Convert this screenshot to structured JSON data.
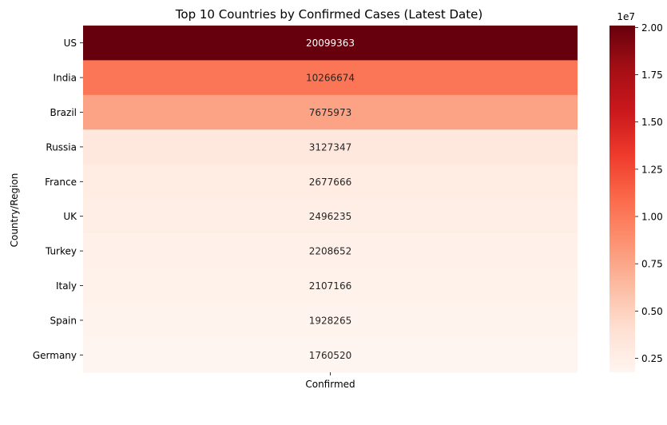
{
  "chart_data": {
    "type": "heatmap",
    "title": "Top 10 Countries by Confirmed Cases (Latest Date)",
    "xlabel": "",
    "ylabel": "Country/Region",
    "x_categories": [
      "Confirmed"
    ],
    "y_categories": [
      "US",
      "India",
      "Brazil",
      "Russia",
      "France",
      "UK",
      "Turkey",
      "Italy",
      "Spain",
      "Germany"
    ],
    "values": [
      20099363,
      10266674,
      7675973,
      3127347,
      2677666,
      2496235,
      2208652,
      2107166,
      1928265,
      1760520
    ],
    "value_labels": [
      "20099363",
      "10266674",
      "7675973",
      "3127347",
      "2677666",
      "2496235",
      "2208652",
      "2107166",
      "1928265",
      "1760520"
    ],
    "colormap": "Reds",
    "colorbar": {
      "min": 1760520,
      "max": 20099363,
      "ticks": [
        0.25,
        0.5,
        0.75,
        1.0,
        1.25,
        1.5,
        1.75,
        2.0
      ],
      "tick_labels": [
        "0.25",
        "0.50",
        "0.75",
        "1.00",
        "1.25",
        "1.50",
        "1.75",
        "2.00"
      ],
      "multiplier_label": "1e7",
      "multiplier": 10000000
    },
    "grid": false,
    "legend": "colorbar-right"
  }
}
